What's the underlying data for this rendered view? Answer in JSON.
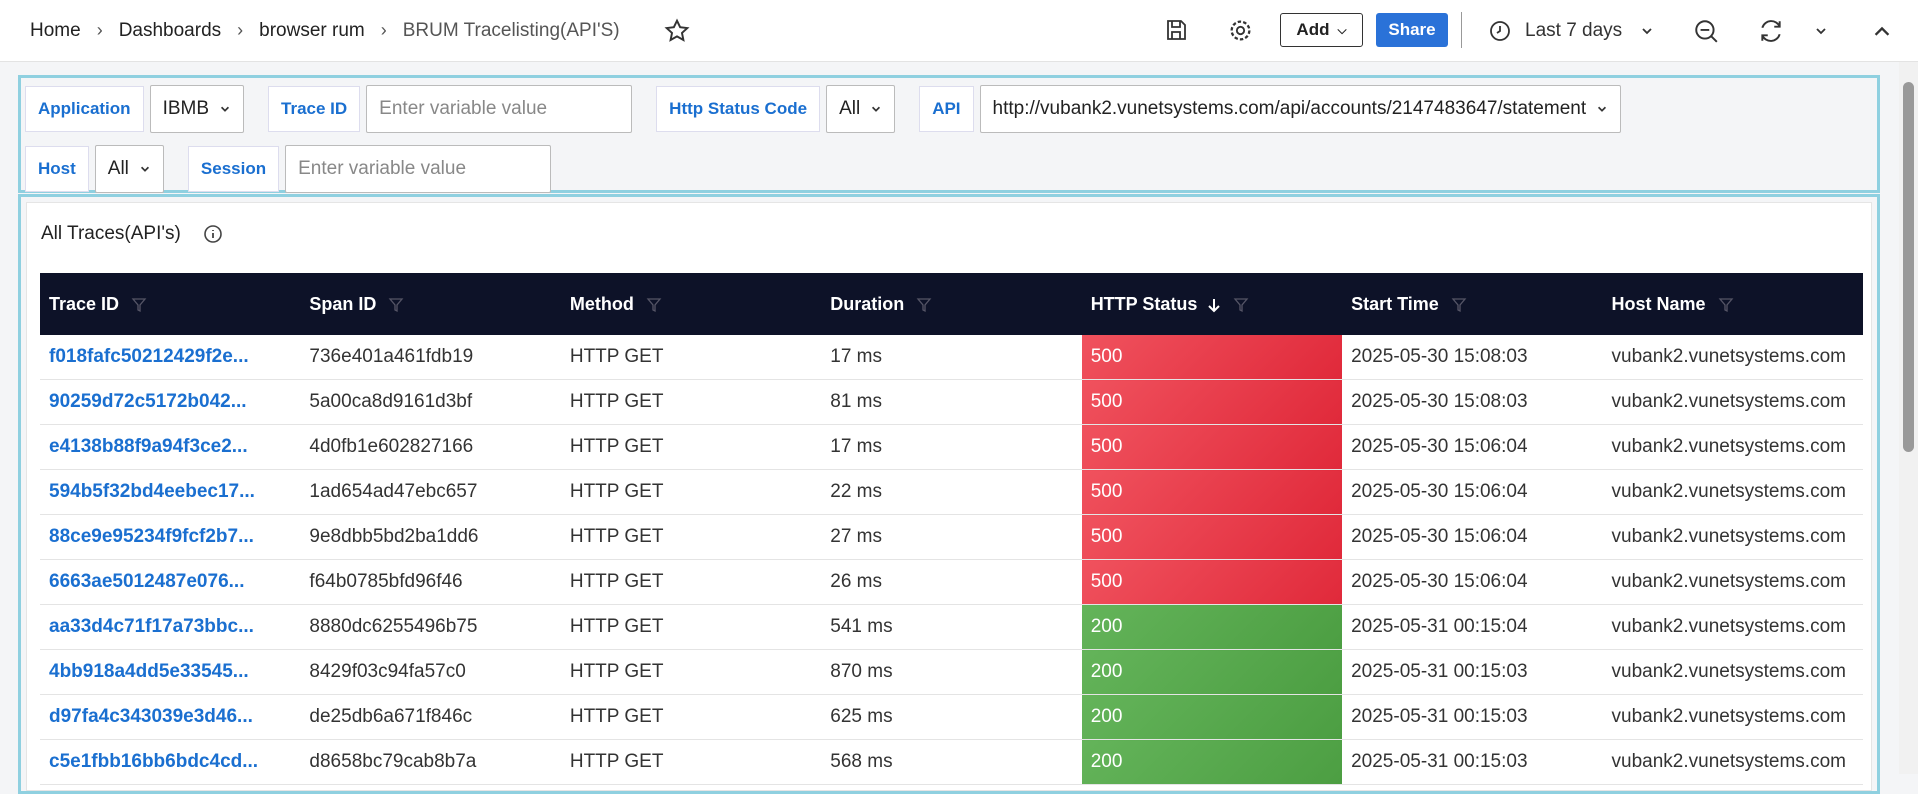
{
  "breadcrumbs": [
    "Home",
    "Dashboards",
    "browser rum",
    "BRUM Tracelisting(API'S)"
  ],
  "toolbar": {
    "add": "Add",
    "share": "Share",
    "time_range": "Last 7 days"
  },
  "variables": [
    {
      "label": "Application",
      "value": "IBMB"
    },
    {
      "label": "Trace ID",
      "placeholder": "Enter variable value"
    },
    {
      "label": "Http Status Code",
      "value": "All"
    },
    {
      "label": "API",
      "value": "http://vubank2.vunetsystems.com/api/accounts/2147483647/statement"
    },
    {
      "label": "Host",
      "value": "All"
    },
    {
      "label": "Session",
      "placeholder": "Enter variable value"
    }
  ],
  "panel": {
    "title": "All Traces(API's)"
  },
  "table": {
    "columns": [
      "Trace ID",
      "Span ID",
      "Method",
      "Duration",
      "HTTP Status",
      "Start Time",
      "Host Name"
    ],
    "rows": [
      [
        "f018fafc50212429f2e...",
        "736e401a461fdb19",
        "HTTP GET",
        "17 ms",
        "500",
        "2025-05-30 15:08:03",
        "vubank2.vunetsystems.com"
      ],
      [
        "90259d72c5172b042...",
        "5a00ca8d9161d3bf",
        "HTTP GET",
        "81 ms",
        "500",
        "2025-05-30 15:08:03",
        "vubank2.vunetsystems.com"
      ],
      [
        "e4138b88f9a94f3ce2...",
        "4d0fb1e602827166",
        "HTTP GET",
        "17 ms",
        "500",
        "2025-05-30 15:06:04",
        "vubank2.vunetsystems.com"
      ],
      [
        "594b5f32bd4eebec17...",
        "1ad654ad47ebc657",
        "HTTP GET",
        "22 ms",
        "500",
        "2025-05-30 15:06:04",
        "vubank2.vunetsystems.com"
      ],
      [
        "88ce9e95234f9fcf2b7...",
        "9e8dbb5bd2ba1dd6",
        "HTTP GET",
        "27 ms",
        "500",
        "2025-05-30 15:06:04",
        "vubank2.vunetsystems.com"
      ],
      [
        "6663ae5012487e076...",
        "f64b0785bfd96f46",
        "HTTP GET",
        "26 ms",
        "500",
        "2025-05-30 15:06:04",
        "vubank2.vunetsystems.com"
      ],
      [
        "aa33d4c71f17a73bbc...",
        "8880dc6255496b75",
        "HTTP GET",
        "541 ms",
        "200",
        "2025-05-31 00:15:04",
        "vubank2.vunetsystems.com"
      ],
      [
        "4bb918a4dd5e33545...",
        "8429f03c94fa57c0",
        "HTTP GET",
        "870 ms",
        "200",
        "2025-05-31 00:15:03",
        "vubank2.vunetsystems.com"
      ],
      [
        "d97fa4c343039e3d46...",
        "de25db6a671f846c",
        "HTTP GET",
        "625 ms",
        "200",
        "2025-05-31 00:15:03",
        "vubank2.vunetsystems.com"
      ],
      [
        "c5e1fbb16bb6bdc4cd...",
        "d8658bc79cab8b7a",
        "HTTP GET",
        "568 ms",
        "200",
        "2025-05-31 00:15:03",
        "vubank2.vunetsystems.com"
      ]
    ]
  }
}
